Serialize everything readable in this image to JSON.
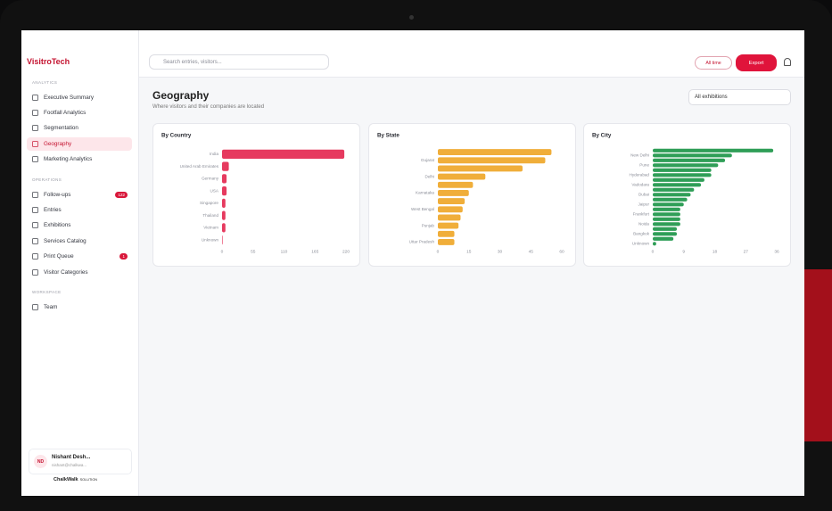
{
  "sidebar": {
    "logo": "VisitroTech",
    "sections": [
      {
        "title": "ANALYTICS",
        "items": [
          {
            "label": "Executive Summary"
          },
          {
            "label": "Footfall Analytics"
          },
          {
            "label": "Segmentation"
          },
          {
            "label": "Geography",
            "active": true
          },
          {
            "label": "Marketing Analytics"
          }
        ]
      },
      {
        "title": "OPERATIONS",
        "items": [
          {
            "label": "Follow-ups",
            "badge": "122"
          },
          {
            "label": "Entries"
          },
          {
            "label": "Exhibitions"
          },
          {
            "label": "Services Catalog"
          },
          {
            "label": "Print Queue",
            "badge": "1"
          },
          {
            "label": "Visitor Categories"
          }
        ]
      },
      {
        "title": "WORKSPACE",
        "items": [
          {
            "label": "Team"
          }
        ]
      }
    ],
    "user": {
      "initials": "ND",
      "name": "Nishant Desh...",
      "email": "nishant@chalkwa..."
    },
    "brand": "ChalkWalk",
    "brand_suffix": "SOLUTION"
  },
  "header": {
    "search_placeholder": "Search entries, visitors...",
    "period": "All time",
    "export": "Export"
  },
  "page": {
    "title": "Geography",
    "subtitle": "Where visitors and their companies are located",
    "filter": "All exhibitions"
  },
  "chart_data": [
    {
      "type": "bar",
      "orientation": "horizontal",
      "title": "By Country",
      "categories": [
        "India",
        "United Arab Emirates",
        "Germany",
        "USA",
        "Singapore",
        "Thailand",
        "Vietnam",
        "Unknown"
      ],
      "values": [
        217,
        12,
        8,
        8,
        6,
        6,
        6,
        1
      ],
      "color": "#e63a5f",
      "xlim": [
        0,
        220
      ],
      "xticks": [
        0,
        55,
        110,
        165,
        220
      ]
    },
    {
      "type": "bar",
      "orientation": "horizontal",
      "title": "By State",
      "categories": [
        null,
        "Gujarat",
        null,
        "Delhi",
        null,
        "Karnataka",
        null,
        "West Bengal",
        null,
        "Punjab",
        null,
        "Uttar Pradesh"
      ],
      "values": [
        55,
        52,
        41,
        23,
        17,
        15,
        13,
        12,
        11,
        10,
        8,
        8
      ],
      "color": "#f0ae3a",
      "xlim": [
        0,
        60
      ],
      "xticks": [
        0,
        15,
        30,
        45,
        60
      ]
    },
    {
      "type": "bar",
      "orientation": "horizontal",
      "title": "By City",
      "categories": [
        null,
        "New Delhi",
        null,
        "Pune",
        null,
        "Hyderabad",
        null,
        "Vadodara",
        null,
        "Dubai",
        null,
        "Jaipur",
        null,
        "Frankfurt",
        null,
        "Noida",
        null,
        "Bangkok",
        null,
        "Unknown"
      ],
      "values": [
        35,
        23,
        21,
        19,
        17,
        17,
        15,
        14,
        12,
        11,
        10,
        9,
        8,
        8,
        8,
        8,
        7,
        7,
        6,
        1
      ],
      "color": "#2f9e57",
      "xlim": [
        0,
        36
      ],
      "xticks": [
        0,
        9,
        18,
        27,
        36
      ]
    }
  ]
}
